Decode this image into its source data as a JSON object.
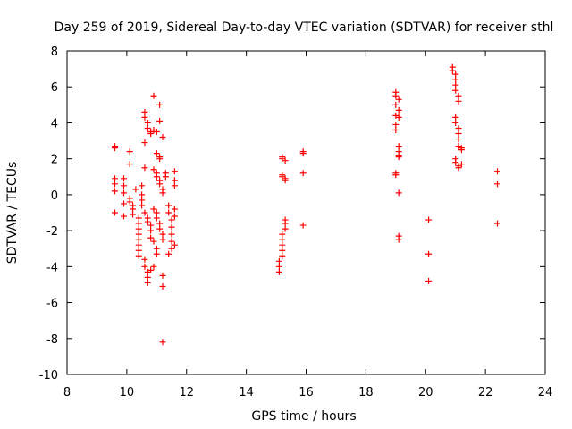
{
  "chart_data": {
    "type": "scatter",
    "title": "Day 259 of 2019, Sidereal Day-to-day VTEC variation (SDTVAR) for receiver sthl",
    "xlabel": "GPS time / hours",
    "ylabel": "SDTVAR / TECUs",
    "xlim": [
      8,
      24
    ],
    "ylim": [
      -10,
      8
    ],
    "xticks": [
      "8",
      "10",
      "12",
      "14",
      "16",
      "18",
      "20",
      "22",
      "24"
    ],
    "yticks": [
      "8",
      "6",
      "4",
      "2",
      "0",
      "-2",
      "-4",
      "-6",
      "-8",
      "-10"
    ],
    "grid": false,
    "marker": "plus",
    "color": "#ff0000",
    "series": [
      {
        "name": "sthl",
        "points": [
          [
            9.6,
            2.7
          ],
          [
            9.6,
            2.6
          ],
          [
            9.6,
            0.9
          ],
          [
            9.6,
            0.6
          ],
          [
            9.6,
            0.2
          ],
          [
            9.6,
            -1.0
          ],
          [
            9.9,
            0.9
          ],
          [
            9.9,
            0.5
          ],
          [
            9.9,
            0.1
          ],
          [
            9.9,
            -0.5
          ],
          [
            9.9,
            -1.2
          ],
          [
            10.1,
            2.4
          ],
          [
            10.1,
            1.7
          ],
          [
            10.1,
            -0.2
          ],
          [
            10.1,
            -0.4
          ],
          [
            10.2,
            -0.6
          ],
          [
            10.2,
            -0.8
          ],
          [
            10.2,
            -1.1
          ],
          [
            10.3,
            0.3
          ],
          [
            10.4,
            -1.3
          ],
          [
            10.4,
            -1.6
          ],
          [
            10.4,
            -1.9
          ],
          [
            10.4,
            -2.2
          ],
          [
            10.4,
            -2.5
          ],
          [
            10.4,
            -2.8
          ],
          [
            10.4,
            -3.1
          ],
          [
            10.4,
            -3.4
          ],
          [
            10.5,
            0.5
          ],
          [
            10.5,
            0.0
          ],
          [
            10.5,
            -0.3
          ],
          [
            10.5,
            -0.6
          ],
          [
            10.6,
            1.5
          ],
          [
            10.6,
            2.9
          ],
          [
            10.6,
            4.6
          ],
          [
            10.6,
            4.3
          ],
          [
            10.7,
            4.0
          ],
          [
            10.7,
            3.7
          ],
          [
            10.8,
            3.4
          ],
          [
            10.8,
            3.5
          ],
          [
            10.9,
            3.6
          ],
          [
            10.9,
            5.5
          ],
          [
            11.0,
            3.5
          ],
          [
            11.0,
            2.3
          ],
          [
            11.1,
            2.1
          ],
          [
            11.1,
            2.0
          ],
          [
            11.1,
            5.0
          ],
          [
            11.1,
            4.1
          ],
          [
            11.2,
            3.2
          ],
          [
            10.6,
            -1.0
          ],
          [
            10.7,
            -1.3
          ],
          [
            10.7,
            -1.5
          ],
          [
            10.8,
            -1.7
          ],
          [
            10.8,
            -2.0
          ],
          [
            10.8,
            -2.4
          ],
          [
            10.9,
            -2.6
          ],
          [
            11.0,
            -3.0
          ],
          [
            11.0,
            -3.3
          ],
          [
            10.6,
            -3.6
          ],
          [
            10.6,
            -4.0
          ],
          [
            10.7,
            -4.3
          ],
          [
            10.7,
            -4.6
          ],
          [
            10.7,
            -4.9
          ],
          [
            10.8,
            -4.2
          ],
          [
            10.9,
            -4.0
          ],
          [
            10.9,
            -0.8
          ],
          [
            11.0,
            -1.0
          ],
          [
            11.0,
            -1.3
          ],
          [
            11.1,
            -1.6
          ],
          [
            11.1,
            -1.9
          ],
          [
            11.2,
            -2.2
          ],
          [
            11.2,
            -2.5
          ],
          [
            10.9,
            1.4
          ],
          [
            11.0,
            1.2
          ],
          [
            11.0,
            1.0
          ],
          [
            11.1,
            0.8
          ],
          [
            11.1,
            0.6
          ],
          [
            11.2,
            0.3
          ],
          [
            11.2,
            0.1
          ],
          [
            11.2,
            -4.5
          ],
          [
            11.2,
            -5.1
          ],
          [
            11.2,
            -8.2
          ],
          [
            11.3,
            1.2
          ],
          [
            11.3,
            1.0
          ],
          [
            11.4,
            -0.6
          ],
          [
            11.4,
            -1.0
          ],
          [
            11.5,
            -1.4
          ],
          [
            11.5,
            -1.8
          ],
          [
            11.5,
            -2.2
          ],
          [
            11.5,
            -2.6
          ],
          [
            11.5,
            -3.0
          ],
          [
            11.4,
            -3.3
          ],
          [
            11.6,
            1.3
          ],
          [
            11.6,
            0.8
          ],
          [
            11.6,
            0.5
          ],
          [
            11.6,
            -0.8
          ],
          [
            11.6,
            -1.2
          ],
          [
            11.6,
            -2.8
          ],
          [
            15.1,
            -4.3
          ],
          [
            15.1,
            -4.0
          ],
          [
            15.1,
            -3.7
          ],
          [
            15.2,
            -3.4
          ],
          [
            15.2,
            -3.1
          ],
          [
            15.2,
            -2.8
          ],
          [
            15.2,
            -2.5
          ],
          [
            15.2,
            -2.2
          ],
          [
            15.3,
            -1.9
          ],
          [
            15.3,
            -1.6
          ],
          [
            15.3,
            -1.4
          ],
          [
            15.2,
            2.1
          ],
          [
            15.2,
            2.0
          ],
          [
            15.3,
            1.9
          ],
          [
            15.2,
            1.1
          ],
          [
            15.2,
            1.0
          ],
          [
            15.3,
            0.9
          ],
          [
            15.3,
            0.8
          ],
          [
            15.9,
            2.4
          ],
          [
            15.9,
            2.3
          ],
          [
            15.9,
            1.2
          ],
          [
            15.9,
            -1.7
          ],
          [
            19.0,
            5.7
          ],
          [
            19.0,
            5.5
          ],
          [
            19.1,
            5.3
          ],
          [
            19.0,
            5.0
          ],
          [
            19.1,
            4.7
          ],
          [
            19.0,
            4.4
          ],
          [
            19.1,
            4.3
          ],
          [
            19.0,
            3.9
          ],
          [
            19.0,
            3.6
          ],
          [
            19.1,
            2.7
          ],
          [
            19.1,
            2.4
          ],
          [
            19.1,
            2.2
          ],
          [
            19.1,
            2.1
          ],
          [
            19.0,
            1.2
          ],
          [
            19.0,
            1.1
          ],
          [
            19.1,
            0.1
          ],
          [
            19.1,
            -2.3
          ],
          [
            19.1,
            -2.5
          ],
          [
            20.1,
            -1.4
          ],
          [
            20.1,
            -3.3
          ],
          [
            20.1,
            -4.8
          ],
          [
            20.9,
            7.1
          ],
          [
            20.9,
            6.9
          ],
          [
            21.0,
            6.7
          ],
          [
            21.0,
            6.4
          ],
          [
            21.0,
            6.1
          ],
          [
            21.0,
            5.8
          ],
          [
            21.1,
            5.5
          ],
          [
            21.1,
            5.2
          ],
          [
            21.0,
            4.3
          ],
          [
            21.0,
            4.0
          ],
          [
            21.1,
            3.7
          ],
          [
            21.1,
            3.4
          ],
          [
            21.1,
            3.1
          ],
          [
            21.1,
            2.7
          ],
          [
            21.2,
            2.5
          ],
          [
            21.2,
            2.6
          ],
          [
            21.0,
            2.0
          ],
          [
            21.0,
            1.8
          ],
          [
            21.1,
            1.6
          ],
          [
            21.1,
            1.5
          ],
          [
            21.2,
            1.7
          ],
          [
            22.4,
            1.3
          ],
          [
            22.4,
            0.6
          ],
          [
            22.4,
            -1.6
          ]
        ]
      }
    ]
  }
}
